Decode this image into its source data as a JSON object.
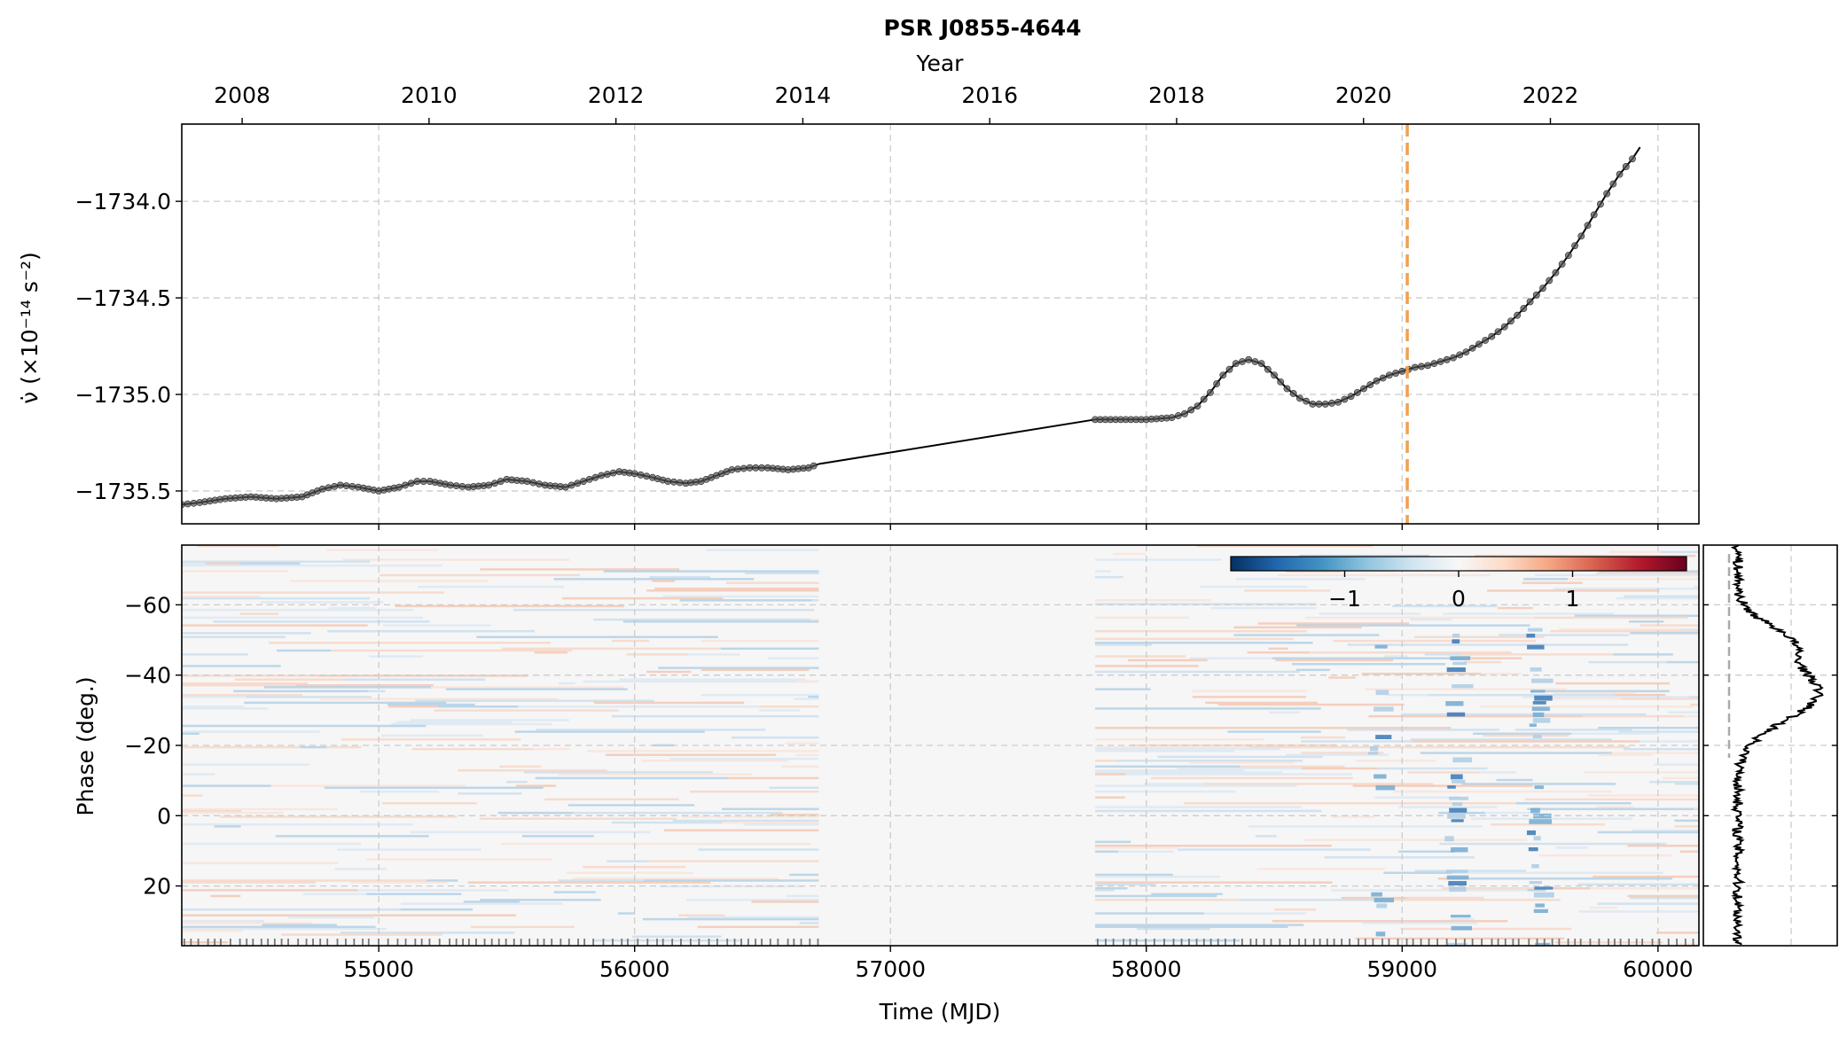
{
  "chart_data": [
    {
      "type": "line",
      "title": "PSR J0855-4644",
      "top_axis_label": "Year",
      "top_ticks": [
        "2008",
        "2010",
        "2012",
        "2014",
        "2016",
        "2018",
        "2020",
        "2022"
      ],
      "ylabel": "ν̇ (×10⁻¹⁴ s⁻²)",
      "y_ticks": [
        "−1734.0",
        "−1734.5",
        "−1735.0",
        "−1735.5"
      ],
      "xlim": [
        54230,
        60160
      ],
      "ylim": [
        -1735.67,
        -1733.6
      ],
      "grid": true,
      "event_line_mjd": 59020,
      "event_line_color": "#f2a04f",
      "segments": [
        {
          "x": [
            54230,
            54300,
            54400,
            54500,
            54600,
            54700,
            54780,
            54850,
            54920,
            55000,
            55080,
            55150,
            55200,
            55280,
            55350,
            55430,
            55500,
            55580,
            55650,
            55730,
            55800,
            55870,
            55940,
            56000,
            56070,
            56130,
            56200,
            56260,
            56320,
            56380,
            56450,
            56520,
            56600,
            56680,
            56720
          ],
          "y": [
            -1735.57,
            -1735.56,
            -1735.54,
            -1735.53,
            -1735.54,
            -1735.53,
            -1735.49,
            -1735.47,
            -1735.48,
            -1735.5,
            -1735.48,
            -1735.45,
            -1735.45,
            -1735.47,
            -1735.48,
            -1735.47,
            -1735.44,
            -1735.45,
            -1735.47,
            -1735.48,
            -1735.45,
            -1735.42,
            -1735.4,
            -1735.41,
            -1735.43,
            -1735.45,
            -1735.46,
            -1735.45,
            -1735.42,
            -1735.39,
            -1735.38,
            -1735.38,
            -1735.39,
            -1735.38,
            -1735.36
          ]
        },
        {
          "x": [
            56720,
            57800
          ],
          "y": [
            -1735.36,
            -1735.13
          ]
        },
        {
          "x": [
            57800,
            57900,
            58000,
            58100,
            58150,
            58200,
            58250,
            58300,
            58350,
            58400,
            58450,
            58500,
            58550,
            58600,
            58650,
            58700,
            58750,
            58800,
            58850,
            58900,
            58950,
            59000,
            59050,
            59100,
            59150,
            59200,
            59250,
            59300,
            59350,
            59400,
            59450,
            59500,
            59550,
            59600,
            59650,
            59700,
            59750,
            59800,
            59850,
            59900,
            59930
          ],
          "y": [
            -1735.13,
            -1735.13,
            -1735.13,
            -1735.12,
            -1735.1,
            -1735.06,
            -1734.99,
            -1734.9,
            -1734.84,
            -1734.82,
            -1734.84,
            -1734.9,
            -1734.97,
            -1735.02,
            -1735.05,
            -1735.05,
            -1735.04,
            -1735.01,
            -1734.97,
            -1734.93,
            -1734.9,
            -1734.88,
            -1734.86,
            -1734.85,
            -1734.83,
            -1734.81,
            -1734.78,
            -1734.74,
            -1734.7,
            -1734.65,
            -1734.59,
            -1734.52,
            -1734.45,
            -1734.37,
            -1734.28,
            -1734.18,
            -1734.07,
            -1733.96,
            -1733.86,
            -1733.78,
            -1733.72
          ]
        }
      ]
    },
    {
      "type": "heatmap",
      "xlabel": "Time (MJD)",
      "ylabel": "Phase (deg.)",
      "x_ticks": [
        "55000",
        "56000",
        "57000",
        "58000",
        "59000",
        "60000"
      ],
      "y_ticks": [
        "−60",
        "−40",
        "−20",
        "0",
        "20"
      ],
      "xlim": [
        54230,
        60160
      ],
      "ylim": [
        -77,
        37
      ],
      "colorbar_ticks": [
        "−1",
        "0",
        "1"
      ],
      "colorbar_range": [
        -2,
        2
      ],
      "colormap": [
        "#053061",
        "#2166ac",
        "#4393c3",
        "#92c5de",
        "#d1e5f0",
        "#f7f7f7",
        "#fddbc7",
        "#f4a582",
        "#d6604d",
        "#b2182b",
        "#67001f"
      ],
      "observation_gap_mjd": [
        56720,
        57800
      ]
    },
    {
      "type": "line",
      "panel": "side profile",
      "xlabel": "",
      "ylabel": ""
    }
  ]
}
